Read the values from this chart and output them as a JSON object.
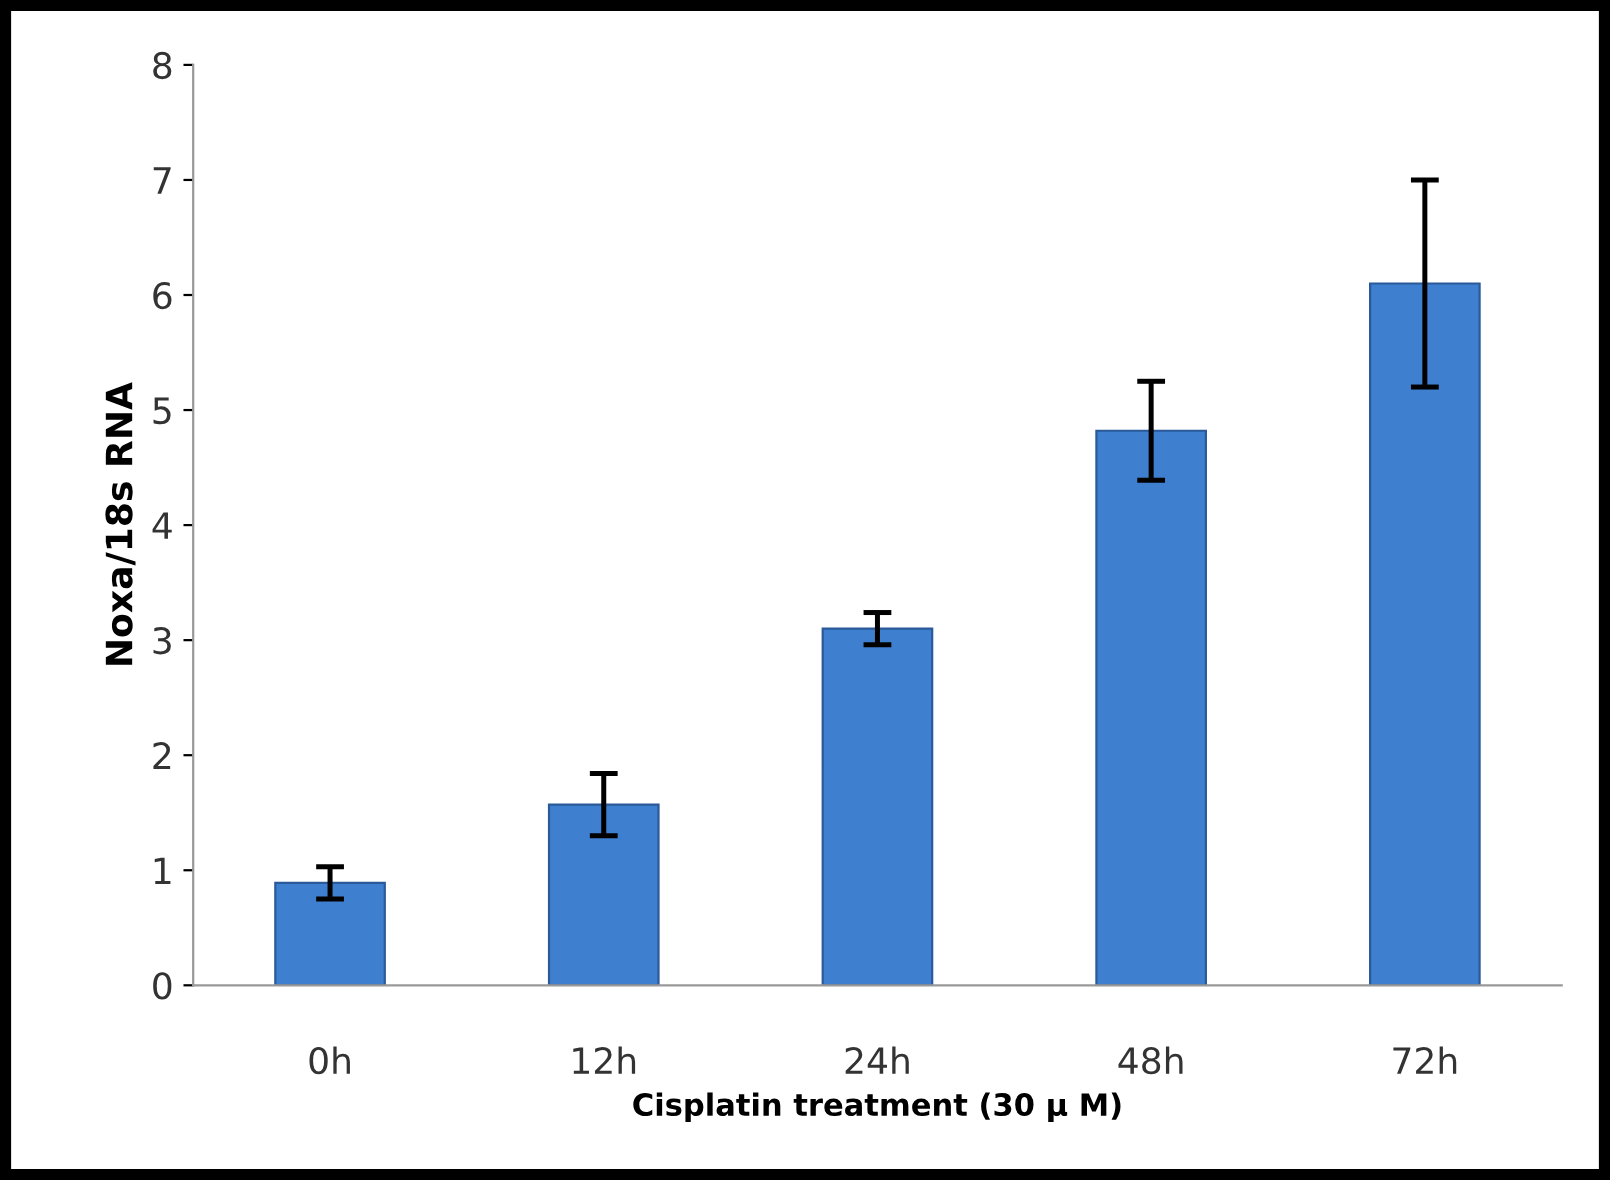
{
  "chart_data": {
    "type": "bar",
    "xlabel": "Cisplatin treatment (30 μ M)",
    "ylabel": "Noxa/18s RNA",
    "categories": [
      "0h",
      "12h",
      "24h",
      "48h",
      "72h"
    ],
    "values": [
      0.89,
      1.57,
      3.1,
      4.82,
      6.1
    ],
    "errors": [
      0.14,
      0.27,
      0.14,
      0.43,
      0.9
    ],
    "color": "#3f7fcf",
    "ylim": [
      0,
      8
    ],
    "yticks": [
      0,
      1,
      2,
      3,
      4,
      5,
      6,
      7,
      8
    ],
    "grid": false,
    "legend": false
  }
}
